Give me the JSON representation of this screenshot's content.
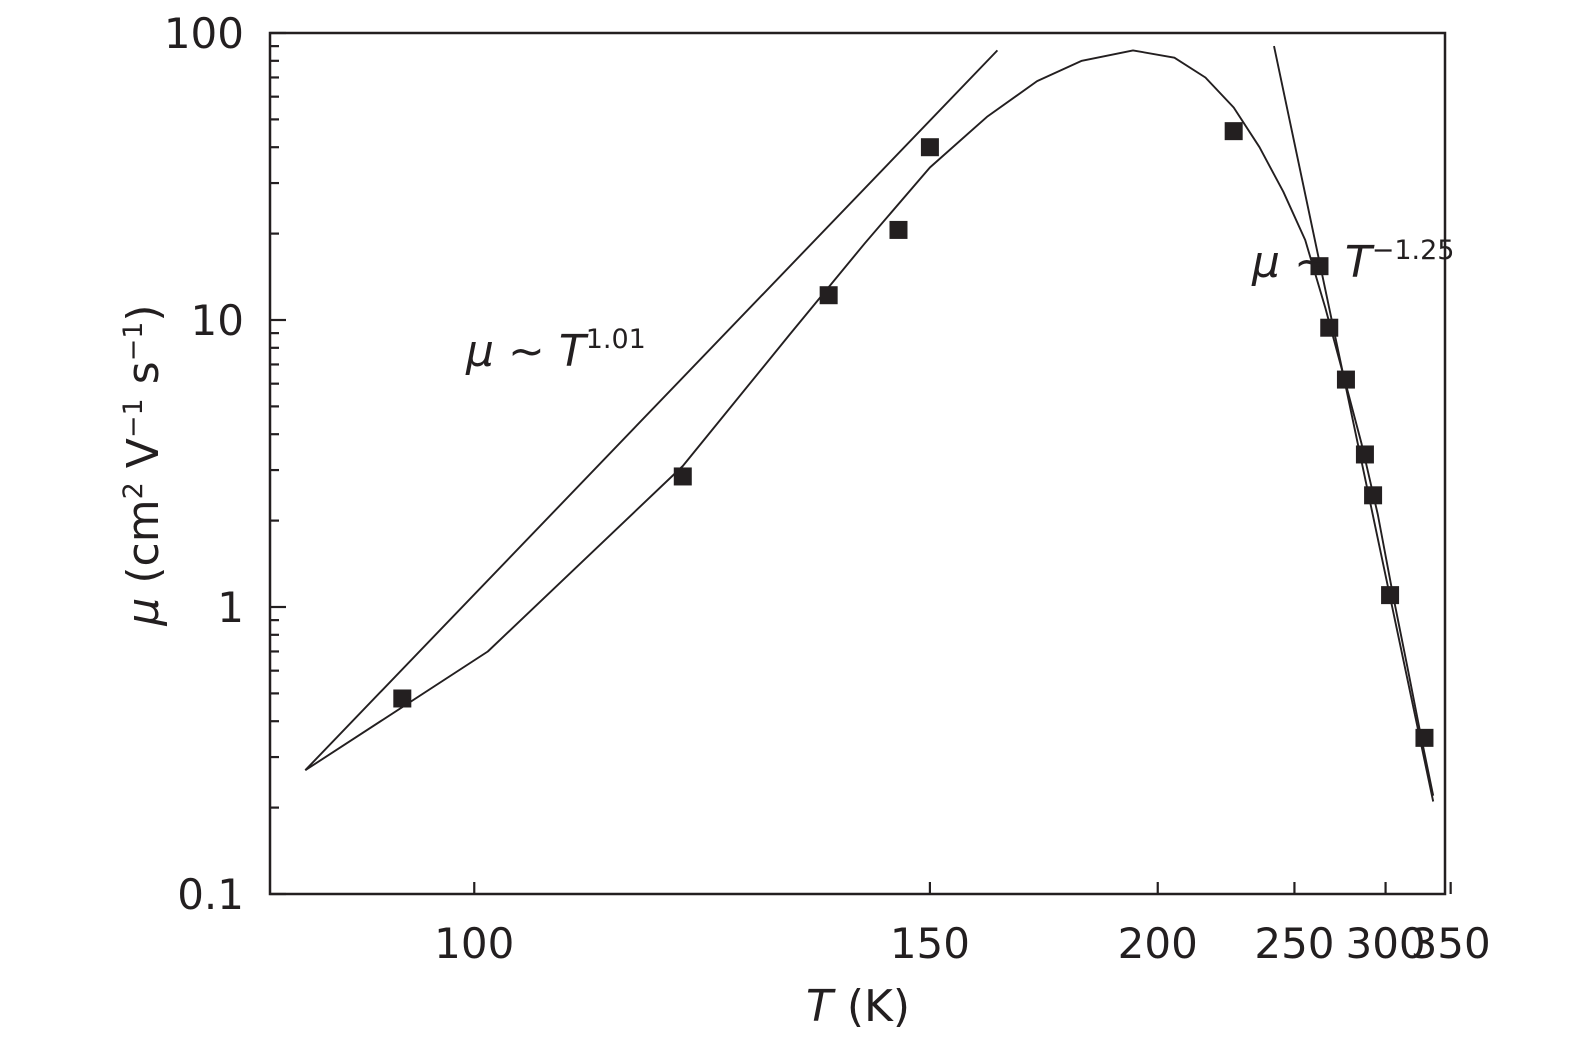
{
  "chart_data": {
    "type": "scatter",
    "title": "",
    "x_scale": "reciprocal",
    "y_scale": "log",
    "xlim": [
      87,
      345
    ],
    "ylim": [
      0.1,
      100
    ],
    "x_ticks": [
      100,
      150,
      200,
      250,
      300,
      350
    ],
    "x_tick_labels": [
      "100",
      "150",
      "200",
      "250",
      "300",
      "350"
    ],
    "y_ticks": [
      0.1,
      1,
      10,
      100
    ],
    "y_tick_labels": [
      "0.1",
      "1",
      "10",
      "100"
    ],
    "xlabel": {
      "var": "T",
      "unit": " (K)"
    },
    "ylabel": {
      "var": "μ",
      "unit": " (cm",
      "sup1": "2",
      "mid": " V",
      "sup2": "−1",
      "mid2": " s",
      "sup3": "−1",
      "end": ")"
    },
    "grid": false,
    "legend": "none",
    "series": [
      {
        "type": "scatter",
        "marker": "square",
        "color": "#231f20",
        "points": [
          {
            "x": 95,
            "y": 0.48
          },
          {
            "x": 118,
            "y": 2.85
          },
          {
            "x": 135,
            "y": 12.2
          },
          {
            "x": 145,
            "y": 20.6
          },
          {
            "x": 150,
            "y": 40
          },
          {
            "x": 225,
            "y": 45.5
          },
          {
            "x": 262,
            "y": 15.4
          },
          {
            "x": 267,
            "y": 9.4
          },
          {
            "x": 276,
            "y": 6.2
          },
          {
            "x": 287,
            "y": 3.4
          },
          {
            "x": 292,
            "y": 2.45
          },
          {
            "x": 303,
            "y": 1.1
          },
          {
            "x": 328,
            "y": 0.35
          }
        ]
      },
      {
        "type": "line",
        "color": "#231f20",
        "points": [
          {
            "x": 89,
            "y": 0.27
          },
          {
            "x": 101,
            "y": 0.7
          },
          {
            "x": 118,
            "y": 3.1
          },
          {
            "x": 130,
            "y": 8.9
          },
          {
            "x": 140,
            "y": 18.5
          },
          {
            "x": 150,
            "y": 34
          },
          {
            "x": 160,
            "y": 51
          },
          {
            "x": 170,
            "y": 68
          },
          {
            "x": 180,
            "y": 80
          },
          {
            "x": 193,
            "y": 87
          },
          {
            "x": 205,
            "y": 82
          },
          {
            "x": 215,
            "y": 70
          },
          {
            "x": 225,
            "y": 55
          },
          {
            "x": 235,
            "y": 40
          },
          {
            "x": 245,
            "y": 28
          },
          {
            "x": 255,
            "y": 19
          },
          {
            "x": 265,
            "y": 11
          },
          {
            "x": 275,
            "y": 6.3
          },
          {
            "x": 285,
            "y": 3.7
          },
          {
            "x": 295,
            "y": 2.1
          },
          {
            "x": 305,
            "y": 1.1
          },
          {
            "x": 315,
            "y": 0.62
          },
          {
            "x": 325,
            "y": 0.36
          },
          {
            "x": 335,
            "y": 0.22
          }
        ]
      },
      {
        "type": "line",
        "color": "#231f20",
        "points": [
          {
            "x": 89,
            "y": 0.27
          },
          {
            "x": 162,
            "y": 87
          }
        ]
      },
      {
        "type": "line",
        "color": "#231f20",
        "points": [
          {
            "x": 241,
            "y": 90
          },
          {
            "x": 335,
            "y": 0.21
          }
        ]
      }
    ],
    "annotations": [
      {
        "var": "μ",
        "text": " ~ ",
        "var2": "T",
        "sup": "1.01"
      },
      {
        "var": "μ",
        "text": " ~ ",
        "var2": "T",
        "sup": "−1.25"
      }
    ]
  }
}
